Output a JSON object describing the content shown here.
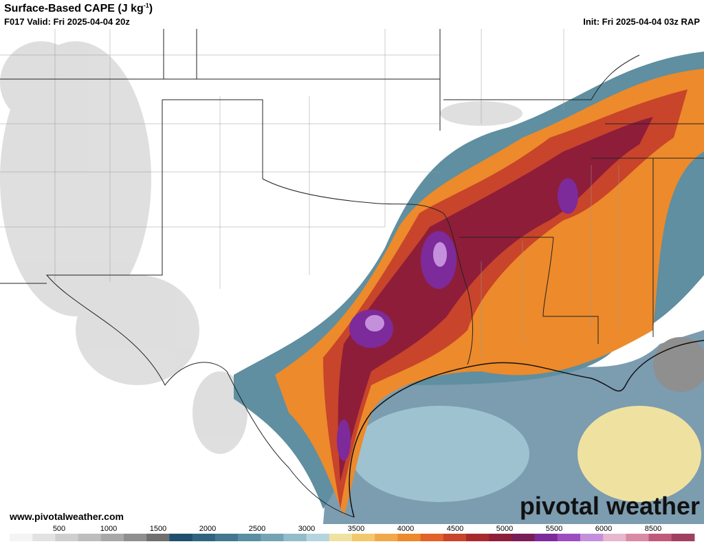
{
  "header": {
    "title": "Surface-Based CAPE (J kg",
    "title_superscript": "-1",
    "title_close": ")",
    "valid": "F017 Valid: Fri 2025-04-04 20z",
    "init": "Init: Fri 2025-04-04 03z RAP"
  },
  "footer": {
    "url": "www.pivotalweather.com",
    "logo": "pivotal weather"
  },
  "colorbar": {
    "labels": [
      500,
      1000,
      1500,
      2000,
      2500,
      3000,
      3500,
      4000,
      4500,
      5000,
      5500,
      6000,
      8500
    ],
    "colors": [
      "#f4f4f4",
      "#e2e2e2",
      "#cfcfcf",
      "#bdbdbd",
      "#a8a8a8",
      "#8f8f8f",
      "#6f6f6f",
      "#1f4f6f",
      "#2f637f",
      "#43778f",
      "#5a8ea2",
      "#74a4b4",
      "#93bccb",
      "#b4d4df",
      "#efe2a0",
      "#f3c86c",
      "#f1a84a",
      "#ec8a2c",
      "#e2622a",
      "#c8442a",
      "#a82a2e",
      "#8e1d3a",
      "#7a1c58",
      "#7d2a9a",
      "#9c4ec0",
      "#c490dc",
      "#e7b6cf",
      "#d98aa4",
      "#c05a7a",
      "#a04060"
    ]
  }
}
